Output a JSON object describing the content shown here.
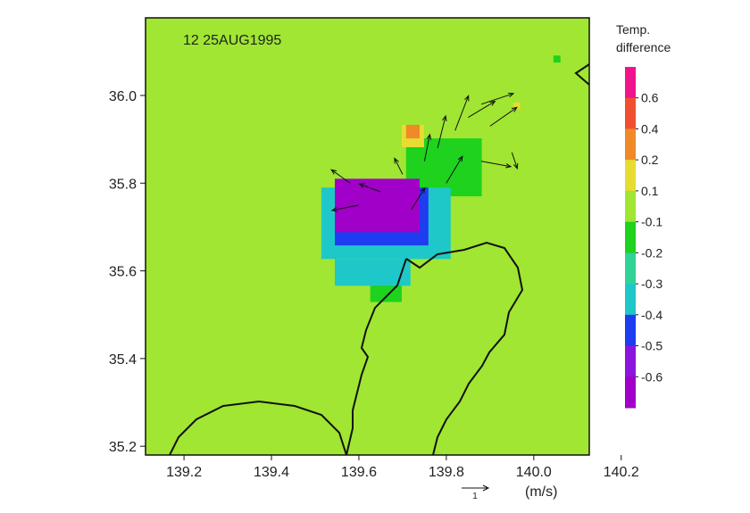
{
  "chart_data": {
    "type": "map",
    "title": "12 25AUG1995",
    "colorbar_title": [
      "Temp.",
      "difference"
    ],
    "xlim": [
      139.112,
      140.127
    ],
    "ylim": [
      35.18,
      36.177
    ],
    "xticks": [
      139.2,
      139.4,
      139.6,
      139.8,
      {
        "value": 140,
        "label": "140.0"
      },
      140.2
    ],
    "yticks": [
      35.2,
      35.4,
      35.6,
      35.8,
      {
        "value": 36,
        "label": "36.0"
      }
    ],
    "levels": [
      0.6,
      0.4,
      0.2,
      0.1,
      -0.1,
      -0.2,
      -0.3,
      -0.4,
      -0.5,
      -0.6
    ],
    "colors": [
      "#f0148c",
      "#f05030",
      "#f08a28",
      "#e6dc32",
      "#a0e632",
      "#1ed21e",
      "#30d296",
      "#1ec8c8",
      "#1e3cf0",
      "#8c14dc",
      "#a000c8"
    ],
    "background_value": 0,
    "cells": [
      {
        "lon": [
          139.708,
          139.881
        ],
        "lat": [
          35.77,
          35.902
        ],
        "value": -0.15
      },
      {
        "lon": [
          139.626,
          139.698
        ],
        "lat": [
          35.529,
          35.607
        ],
        "value": -0.15
      },
      {
        "lon": [
          139.514,
          139.81
        ],
        "lat": [
          35.627,
          35.79
        ],
        "value": -0.35
      },
      {
        "lon": [
          139.545,
          139.718
        ],
        "lat": [
          35.566,
          35.627
        ],
        "value": -0.35
      },
      {
        "lon": [
          139.545,
          139.759
        ],
        "lat": [
          35.658,
          35.79
        ],
        "value": -0.45
      },
      {
        "lon": [
          139.545,
          139.739
        ],
        "lat": [
          35.688,
          35.81
        ],
        "value": -0.65
      },
      {
        "lon": [
          139.698,
          139.749
        ],
        "lat": [
          35.882,
          35.933
        ],
        "value": 0.15
      },
      {
        "lon": [
          139.708,
          139.739
        ],
        "lat": [
          35.902,
          35.933
        ],
        "value": 0.3
      },
      {
        "lon": [
          140.045,
          140.061
        ],
        "lat": [
          36.075,
          36.091
        ],
        "value": -0.15
      },
      {
        "lon": [
          139.953,
          139.969
        ],
        "lat": [
          35.969,
          35.984
        ],
        "value": 0.15
      }
    ],
    "vectors": {
      "lon": [
        139.78,
        139.82,
        139.85,
        139.88,
        139.9,
        139.75,
        139.7,
        139.65,
        139.6,
        139.72,
        139.8,
        139.88,
        139.95,
        139.58
      ],
      "lat": [
        35.88,
        35.92,
        35.95,
        35.98,
        35.93,
        35.85,
        35.82,
        35.78,
        35.75,
        35.74,
        35.8,
        35.85,
        35.87,
        35.8
      ],
      "u": [
        0.3,
        0.5,
        1.0,
        1.2,
        1.0,
        0.2,
        -0.3,
        -0.8,
        -1.0,
        0.5,
        0.6,
        1.1,
        0.2,
        -0.7
      ],
      "v": [
        1.2,
        1.3,
        0.6,
        0.4,
        0.7,
        1.0,
        0.6,
        0.3,
        -0.2,
        0.8,
        1.0,
        -0.2,
        -0.6,
        0.5
      ]
    },
    "vector_scale": {
      "value": 1,
      "unit": "(m/s)"
    }
  }
}
